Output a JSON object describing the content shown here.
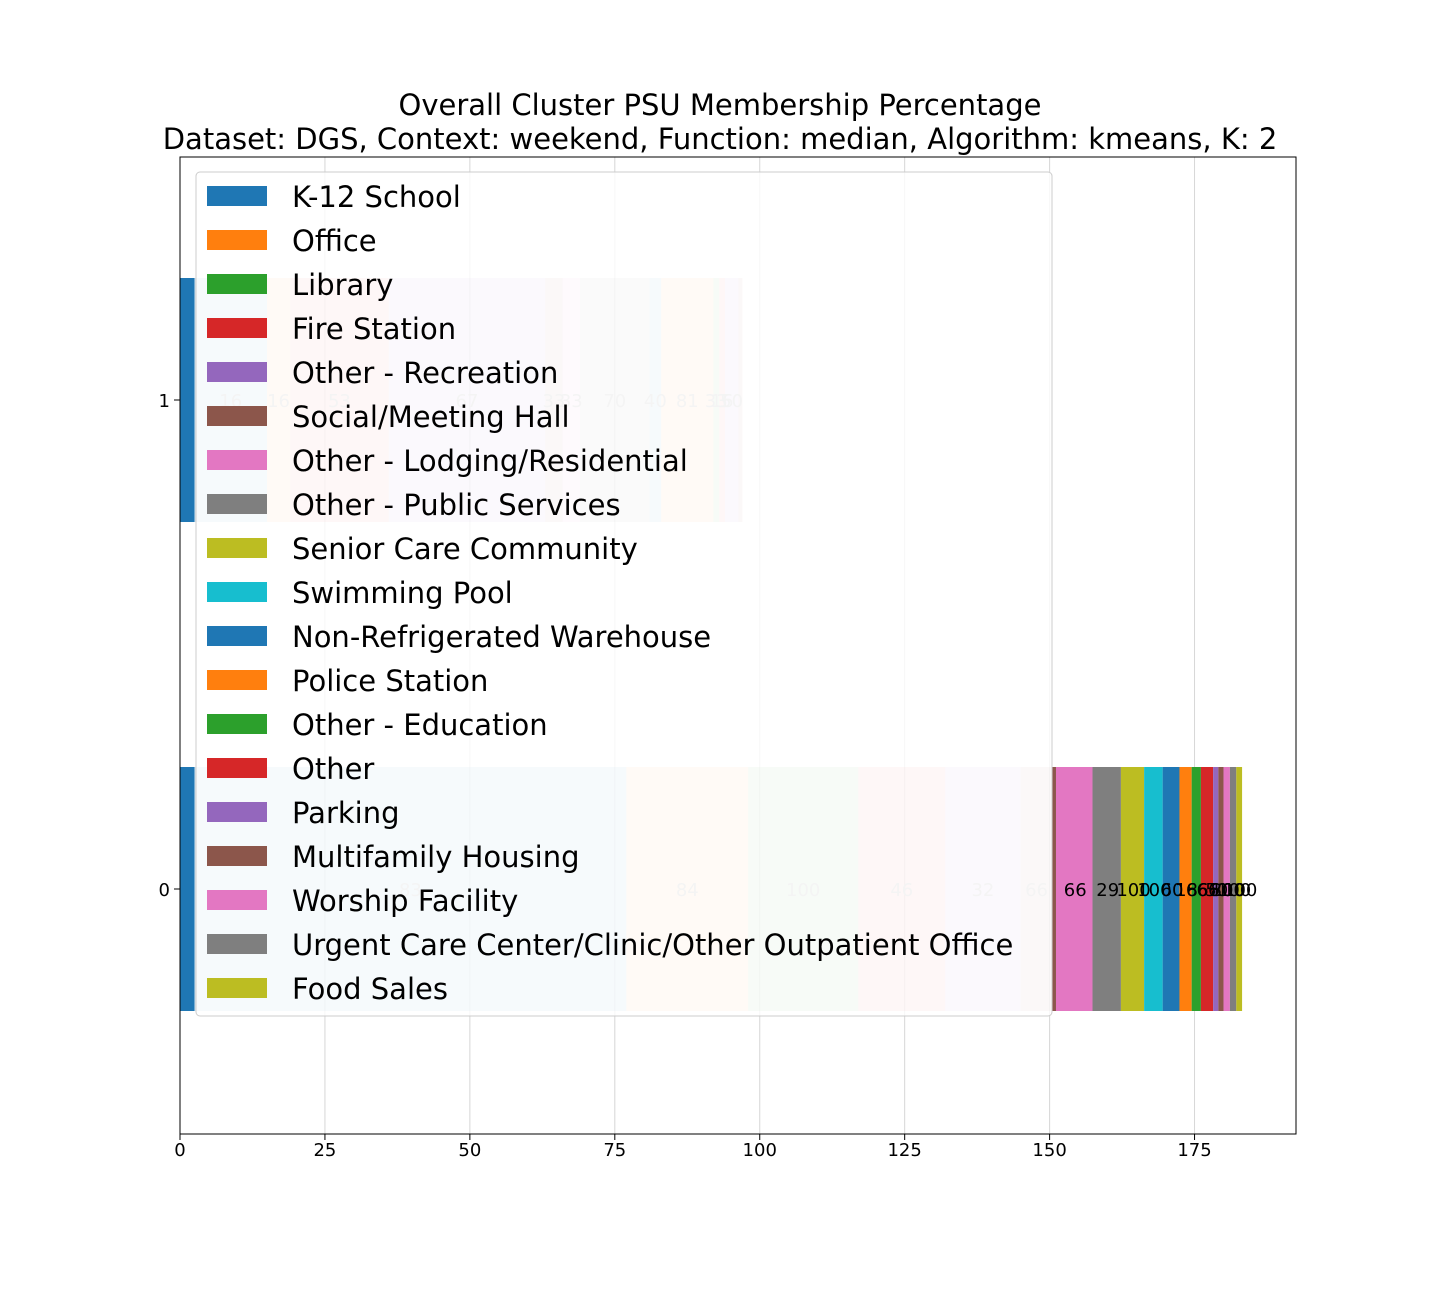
{
  "chart_data": {
    "type": "bar",
    "orientation": "horizontal",
    "stacked": true,
    "title": "Overall Cluster  PSU Membership Percentage",
    "subtitle": "Dataset: DGS, Context: weekend, Function: median, Algorithm: kmeans, K: 2",
    "xlabel": "",
    "ylabel": "",
    "xlim": [
      0,
      192.5
    ],
    "xticks": [
      0,
      25,
      50,
      75,
      100,
      125,
      150,
      175
    ],
    "categories": [
      "1",
      "0"
    ],
    "grid": true,
    "legend_position": "upper-left",
    "series": [
      {
        "name": "K-12 School",
        "color": "#1f77b4",
        "bar_values": [
          2.5,
          2.5
        ],
        "labels": [
          "",
          ""
        ]
      },
      {
        "name": "Office",
        "color": "#ff7f0e",
        "bar_values": [
          0,
          0
        ],
        "labels": [
          "",
          ""
        ]
      },
      {
        "name": "Library",
        "color": "#2ca02c",
        "bar_values": [
          0,
          0
        ],
        "labels": [
          "",
          ""
        ]
      },
      {
        "name": "Fire Station",
        "color": "#d62728",
        "bar_values": [
          0,
          0
        ],
        "labels": [
          "",
          ""
        ]
      },
      {
        "name": "Other - Recreation",
        "color": "#9467bd",
        "bar_values": [
          0,
          0
        ],
        "labels": [
          "",
          ""
        ]
      },
      {
        "name": "Social/Meeting Hall",
        "color": "#8c564b",
        "bar_values": [
          0,
          0.6
        ],
        "labels": [
          "",
          ""
        ]
      },
      {
        "name": "Other - Lodging/Residential",
        "color": "#e377c2",
        "bar_values": [
          0,
          6.3
        ],
        "labels": [
          "",
          "66"
        ]
      },
      {
        "name": "Other - Public Services",
        "color": "#7f7f7f",
        "bar_values": [
          0,
          4.9
        ],
        "labels": [
          "",
          "29"
        ]
      },
      {
        "name": "Senior Care Community",
        "color": "#bcbd22",
        "bar_values": [
          0,
          4.0
        ],
        "labels": [
          "",
          "100"
        ]
      },
      {
        "name": "Swimming Pool",
        "color": "#17becf",
        "bar_values": [
          0,
          3.2
        ],
        "labels": [
          "",
          "100"
        ]
      },
      {
        "name": "Non-Refrigerated Warehouse",
        "color": "#1f77b4",
        "bar_values": [
          0,
          2.9
        ],
        "labels": [
          "",
          "60"
        ]
      },
      {
        "name": "Police Station",
        "color": "#ff7f0e",
        "bar_values": [
          0,
          2.1
        ],
        "labels": [
          "",
          "18"
        ]
      },
      {
        "name": "Other - Education",
        "color": "#2ca02c",
        "bar_values": [
          0,
          1.6
        ],
        "labels": [
          "",
          "66"
        ]
      },
      {
        "name": "Other",
        "color": "#d62728",
        "bar_values": [
          0,
          2.1
        ],
        "labels": [
          "",
          "66"
        ]
      },
      {
        "name": "Parking",
        "color": "#9467bd",
        "bar_values": [
          0,
          0.9
        ],
        "labels": [
          "",
          "50"
        ]
      },
      {
        "name": "Multifamily Housing",
        "color": "#8c564b",
        "bar_values": [
          0,
          0.9
        ],
        "labels": [
          "",
          "80"
        ]
      },
      {
        "name": "Worship Facility",
        "color": "#e377c2",
        "bar_values": [
          0,
          1.1
        ],
        "labels": [
          "",
          "100"
        ]
      },
      {
        "name": "Urgent Care Center/Clinic/Other Outpatient Office",
        "color": "#7f7f7f",
        "bar_values": [
          0,
          1.1
        ],
        "labels": [
          "",
          "100"
        ]
      },
      {
        "name": "Food Sales",
        "color": "#bcbd22",
        "bar_values": [
          0,
          1.0
        ],
        "labels": [
          "",
          "100"
        ]
      }
    ],
    "background_segments": [
      {
        "category": "1",
        "start": 2.5,
        "end": 15,
        "color": "#1f77b4",
        "label": "16"
      },
      {
        "category": "1",
        "start": 15,
        "end": 19,
        "color": "#ff7f0e",
        "label": "16"
      },
      {
        "category": "1",
        "start": 19,
        "end": 36,
        "color": "#d62728",
        "label": "53"
      },
      {
        "category": "1",
        "start": 36,
        "end": 63,
        "color": "#9467bd",
        "label": "67"
      },
      {
        "category": "1",
        "start": 63,
        "end": 66,
        "color": "#8c564b",
        "label": "33"
      },
      {
        "category": "1",
        "start": 66,
        "end": 69,
        "color": "#e377c2",
        "label": "33"
      },
      {
        "category": "1",
        "start": 69,
        "end": 81,
        "color": "#7f7f7f",
        "label": "70"
      },
      {
        "category": "1",
        "start": 81,
        "end": 83,
        "color": "#1f77b4",
        "label": "40"
      },
      {
        "category": "1",
        "start": 83,
        "end": 92,
        "color": "#ff7f0e",
        "label": "81"
      },
      {
        "category": "1",
        "start": 92,
        "end": 93,
        "color": "#2ca02c",
        "label": "33"
      },
      {
        "category": "1",
        "start": 93,
        "end": 94,
        "color": "#d62728",
        "label": "16"
      },
      {
        "category": "1",
        "start": 94,
        "end": 96.3,
        "color": "#9467bd",
        "label": "50"
      },
      {
        "category": "1",
        "start": 96.3,
        "end": 97,
        "color": "#8c564b",
        "label": ""
      },
      {
        "category": "0",
        "start": 2.5,
        "end": 77,
        "color": "#1f77b4",
        "label": "83"
      },
      {
        "category": "0",
        "start": 77,
        "end": 98,
        "color": "#ff7f0e",
        "label": "84"
      },
      {
        "category": "0",
        "start": 98,
        "end": 117,
        "color": "#2ca02c",
        "label": "100"
      },
      {
        "category": "0",
        "start": 117,
        "end": 132,
        "color": "#d62728",
        "label": "46"
      },
      {
        "category": "0",
        "start": 132,
        "end": 145,
        "color": "#9467bd",
        "label": "32"
      },
      {
        "category": "0",
        "start": 145,
        "end": 150.5,
        "color": "#8c564b",
        "label": "66"
      }
    ]
  }
}
